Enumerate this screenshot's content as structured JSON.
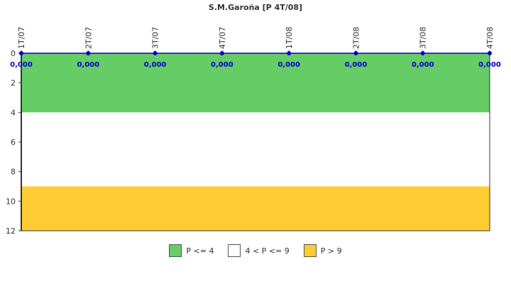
{
  "chart_data": {
    "type": "line",
    "title": "S.M.Garoña [P 4T/08]",
    "categories": [
      "1T/07",
      "2T/07",
      "3T/07",
      "4T/07",
      "1T/08",
      "2T/08",
      "3T/08",
      "4T/08"
    ],
    "series": [
      {
        "values": [
          0,
          0,
          0,
          0,
          0,
          0,
          0,
          0
        ],
        "labels": [
          "0,000",
          "0,000",
          "0,000",
          "0,000",
          "0,000",
          "0,000",
          "0,000",
          "0,000"
        ]
      }
    ],
    "ylim": [
      12,
      0
    ],
    "yticks": [
      "0",
      "2",
      "4",
      "6",
      "8",
      "10",
      "12"
    ],
    "inverted_y": true,
    "bands": [
      {
        "label": "P <= 4",
        "from": 0,
        "to": 4,
        "color": "#66cc66"
      },
      {
        "label": "4 < P <= 9",
        "from": 4,
        "to": 9,
        "color": "#ffffff"
      },
      {
        "label": "P > 9",
        "from": 9,
        "to": 12,
        "color": "#ffcc33"
      }
    ],
    "line_color": "#0000cc",
    "legend_position": "bottom"
  }
}
